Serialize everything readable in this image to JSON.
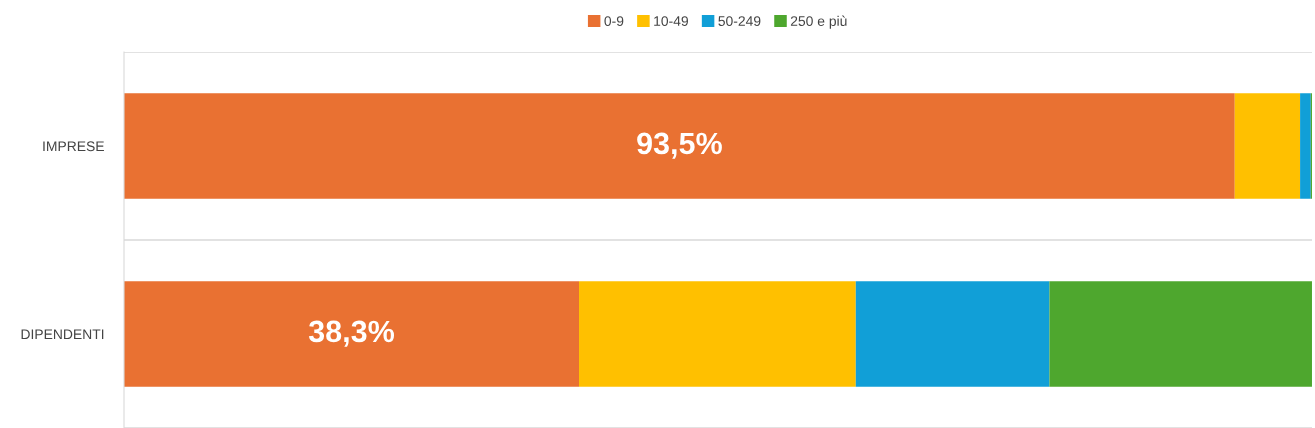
{
  "chart_data": {
    "type": "bar",
    "orientation": "horizontal",
    "stacked": true,
    "categories": [
      "IMPRESE",
      "DIPENDENTI"
    ],
    "series": [
      {
        "name": "0-9",
        "color": "#e97132",
        "values": [
          93.5,
          38.3
        ],
        "value_labels": [
          "93,5%",
          "38,3%"
        ]
      },
      {
        "name": "10-49",
        "color": "#ffc000",
        "values": [
          5.5,
          23.3
        ]
      },
      {
        "name": "50-249",
        "color": "#119fd7",
        "values": [
          0.9,
          16.3
        ]
      },
      {
        "name": "250 e più",
        "color": "#4ea72e",
        "values": [
          0.1,
          22.1
        ]
      }
    ],
    "xlim": [
      0,
      100
    ],
    "tick_labels": "y",
    "legend": "top",
    "grid": false
  }
}
